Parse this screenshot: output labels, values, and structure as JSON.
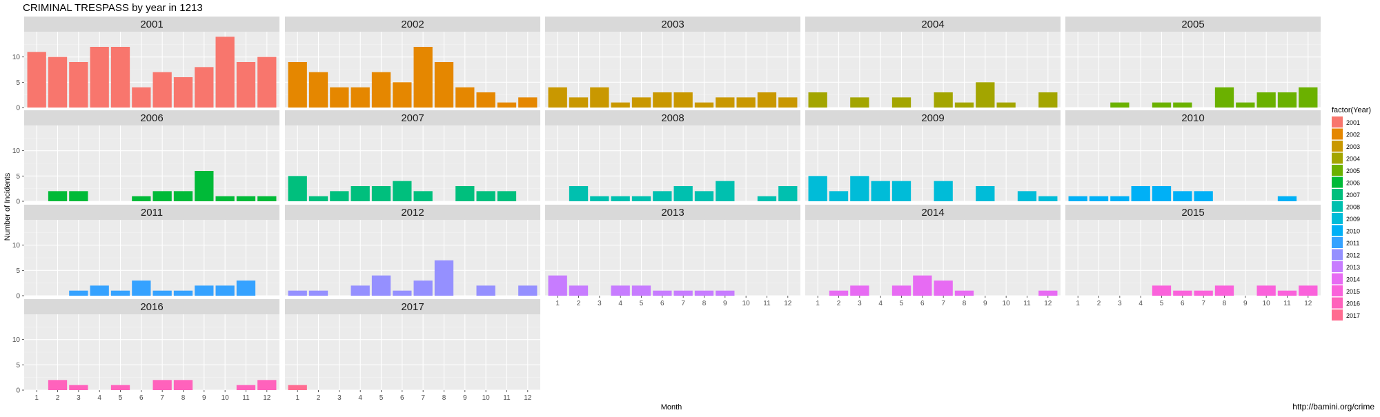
{
  "chart_data": {
    "type": "bar",
    "title": "CRIMINAL TRESPASS by year in 1213",
    "xlabel": "Month",
    "ylabel": "Number of Incidents",
    "ylim": [
      0,
      15
    ],
    "y_ticks": [
      0,
      5,
      10
    ],
    "x_ticks": [
      1,
      2,
      3,
      4,
      5,
      6,
      7,
      8,
      9,
      10,
      11,
      12
    ],
    "legend_title": "factor(Year)",
    "legend_position": "right",
    "caption": "http://bamini.org/crime",
    "panels": [
      {
        "year": "2001",
        "color": "#F8766D",
        "values": [
          11,
          10,
          9,
          12,
          12,
          4,
          7,
          6,
          8,
          14,
          9,
          10
        ]
      },
      {
        "year": "2002",
        "color": "#E58700",
        "values": [
          9,
          7,
          4,
          4,
          7,
          5,
          12,
          9,
          4,
          3,
          1,
          2
        ]
      },
      {
        "year": "2003",
        "color": "#C99800",
        "values": [
          4,
          2,
          4,
          1,
          2,
          3,
          3,
          1,
          2,
          2,
          3,
          2
        ]
      },
      {
        "year": "2004",
        "color": "#A3A500",
        "values": [
          3,
          0,
          2,
          0,
          2,
          0,
          3,
          1,
          5,
          1,
          0,
          3
        ]
      },
      {
        "year": "2005",
        "color": "#6BB100",
        "values": [
          0,
          0,
          1,
          0,
          1,
          1,
          0,
          4,
          1,
          3,
          3,
          4
        ]
      },
      {
        "year": "2006",
        "color": "#00BA38",
        "values": [
          0,
          2,
          2,
          0,
          0,
          1,
          2,
          2,
          6,
          1,
          1,
          1
        ]
      },
      {
        "year": "2007",
        "color": "#00BF7D",
        "values": [
          5,
          1,
          2,
          3,
          3,
          4,
          2,
          0,
          3,
          2,
          2,
          0
        ]
      },
      {
        "year": "2008",
        "color": "#00C0AF",
        "values": [
          0,
          3,
          1,
          1,
          1,
          2,
          3,
          2,
          4,
          0,
          1,
          3
        ]
      },
      {
        "year": "2009",
        "color": "#00BCD8",
        "values": [
          5,
          2,
          5,
          4,
          4,
          0,
          4,
          0,
          3,
          0,
          2,
          1
        ]
      },
      {
        "year": "2010",
        "color": "#00B0F6",
        "values": [
          1,
          1,
          1,
          3,
          3,
          2,
          2,
          0,
          0,
          0,
          1,
          0
        ]
      },
      {
        "year": "2011",
        "color": "#35A2FF",
        "values": [
          0,
          0,
          1,
          2,
          1,
          3,
          1,
          1,
          2,
          2,
          3,
          0
        ]
      },
      {
        "year": "2012",
        "color": "#9590FF",
        "values": [
          1,
          1,
          0,
          2,
          4,
          1,
          3,
          7,
          0,
          2,
          0,
          2
        ]
      },
      {
        "year": "2013",
        "color": "#C77CFF",
        "values": [
          4,
          2,
          0,
          2,
          2,
          1,
          1,
          1,
          1,
          0,
          0,
          0
        ]
      },
      {
        "year": "2014",
        "color": "#E76BF3",
        "values": [
          0,
          1,
          2,
          0,
          2,
          4,
          3,
          1,
          0,
          0,
          0,
          1
        ]
      },
      {
        "year": "2015",
        "color": "#FA62DB",
        "values": [
          0,
          0,
          0,
          0,
          2,
          1,
          1,
          2,
          0,
          2,
          1,
          2
        ]
      },
      {
        "year": "2016",
        "color": "#FF62BC",
        "values": [
          0,
          2,
          1,
          0,
          1,
          0,
          2,
          2,
          0,
          0,
          1,
          2
        ]
      },
      {
        "year": "2017",
        "color": "#FF6C91",
        "values": [
          1,
          0,
          0,
          0,
          0,
          0,
          0,
          0,
          0,
          0,
          0,
          0
        ]
      }
    ]
  }
}
